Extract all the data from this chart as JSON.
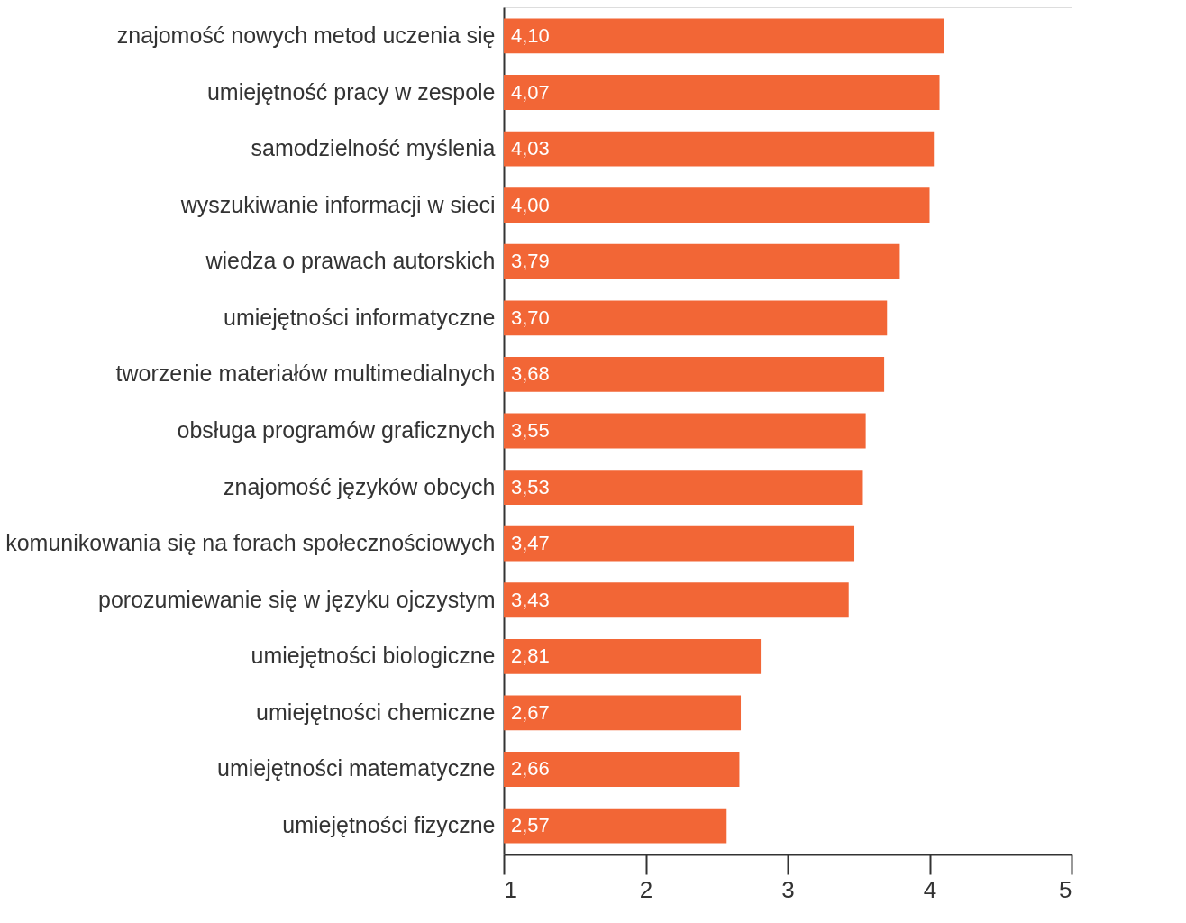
{
  "chart_data": {
    "type": "bar",
    "orientation": "horizontal",
    "categories": [
      "znajomość nowych metod uczenia się",
      "umiejętność pracy w zespole",
      "samodzielność myślenia",
      "wyszukiwanie informacji w sieci",
      "wiedza o prawach autorskich",
      "umiejętności informatyczne",
      "tworzenie materiałów multimedialnych",
      "obsługa programów graficznych",
      "znajomość języków obcych",
      "komunikowania się na forach społecznościowych",
      "porozumiewanie się w języku ojczystym",
      "umiejętności biologiczne",
      "umiejętności chemiczne",
      "umiejętności matematyczne",
      "umiejętności fizyczne"
    ],
    "values": [
      4.1,
      4.07,
      4.03,
      4.0,
      3.79,
      3.7,
      3.68,
      3.55,
      3.53,
      3.47,
      3.43,
      2.81,
      2.67,
      2.66,
      2.57
    ],
    "value_labels": [
      "4,10",
      "4,07",
      "4,03",
      "4,00",
      "3,79",
      "3,70",
      "3,68",
      "3,55",
      "3,53",
      "3,47",
      "3,43",
      "2,81",
      "2,67",
      "2,66",
      "2,57"
    ],
    "color": "#f26636",
    "xlim": [
      1,
      5
    ],
    "xticks": [
      1,
      2,
      3,
      4,
      5
    ],
    "grid": false
  }
}
